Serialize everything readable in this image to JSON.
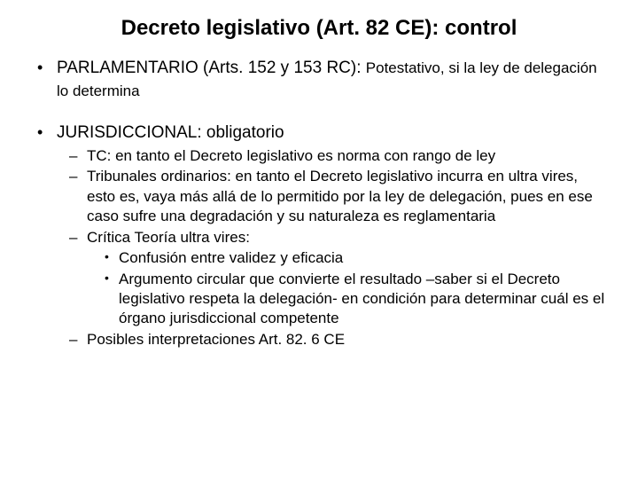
{
  "title": "Decreto legislativo (Art. 82 CE): control",
  "items": [
    {
      "lead": "PARLAMENTARIO  (Arts. 152 y 153 RC): ",
      "rest": "Potestativo, si la ley de delegación lo determina"
    },
    {
      "lead": "JURISDICCIONAL: obligatorio",
      "sub": [
        {
          "text": "TC: en tanto el Decreto legislativo es norma con rango de ley"
        },
        {
          "text": "Tribunales ordinarios: en tanto el Decreto legislativo incurra en ultra vires, esto es, vaya más allá de lo permitido por la ley de delegación, pues en ese caso sufre una degradación y su naturaleza es reglamentaria"
        },
        {
          "text": "Crítica Teoría ultra vires:",
          "sub": [
            {
              "text": "Confusión entre validez y eficacia"
            },
            {
              "text": "Argumento circular que convierte el resultado –saber si el Decreto legislativo respeta la delegación- en condición para determinar cuál es el órgano jurisdiccional competente"
            }
          ]
        },
        {
          "text": "Posibles interpretaciones Art. 82. 6 CE"
        }
      ]
    }
  ],
  "style": {
    "background_color": "#ffffff",
    "text_color": "#000000",
    "font_family": "Arial",
    "title_fontsize_pt": 24,
    "body_fontsize_pt": 19,
    "sub_fontsize_pt": 17,
    "bullet_l1": "•",
    "bullet_l2": "–",
    "bullet_l3": "•"
  }
}
